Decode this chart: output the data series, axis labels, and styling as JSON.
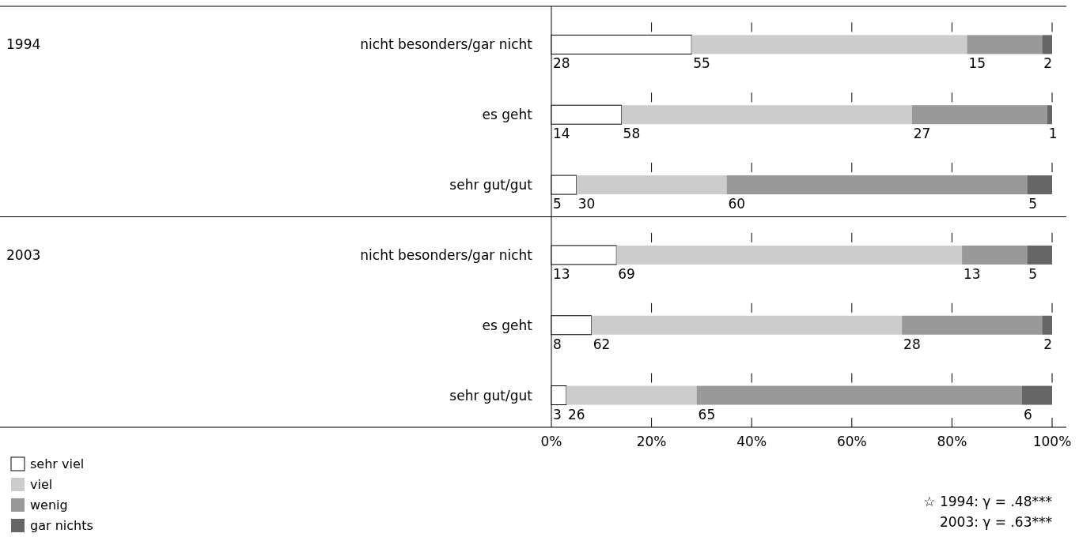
{
  "chart_data": [
    {
      "type": "bar",
      "orientation": "horizontal",
      "stacked": true,
      "ylabel": "1994",
      "categories": [
        "nicht besonders/gar nicht",
        "es geht",
        "sehr gut/gut"
      ],
      "series": [
        {
          "color": "#ffffff",
          "values": [
            28,
            14,
            5
          ]
        },
        {
          "color": "#cccccc",
          "values": [
            55,
            58,
            30
          ]
        },
        {
          "color": "#999999",
          "values": [
            15,
            27,
            60
          ]
        },
        {
          "color": "#666666",
          "values": [
            2,
            1,
            5
          ]
        }
      ],
      "xlim": [
        0,
        100
      ],
      "xticks": [
        {
          "value": 0,
          "label": null
        },
        {
          "value": 20,
          "label": null
        },
        {
          "value": 40,
          "label": null
        },
        {
          "value": 60,
          "label": null
        },
        {
          "value": 80,
          "label": null
        },
        {
          "value": 100,
          "label": null
        }
      ],
      "tick_labels": "y",
      "data_labels": true
    },
    {
      "type": "bar",
      "orientation": "horizontal",
      "stacked": true,
      "ylabel": "2003",
      "categories": [
        "nicht besonders/gar nicht",
        "es geht",
        "sehr gut/gut"
      ],
      "series": [
        {
          "name": "sehr viel",
          "color": "#ffffff",
          "values": [
            13,
            8,
            3
          ]
        },
        {
          "name": "viel",
          "color": "#cccccc",
          "values": [
            69,
            62,
            26
          ]
        },
        {
          "name": "wenig",
          "color": "#999999",
          "values": [
            13,
            28,
            65
          ]
        },
        {
          "name": "gar nichts",
          "color": "#666666",
          "values": [
            5,
            2,
            6
          ]
        }
      ],
      "xlim": [
        0,
        100
      ],
      "xticks": [
        {
          "value": 0,
          "label": "0%"
        },
        {
          "value": 20,
          "label": "20%"
        },
        {
          "value": 40,
          "label": "40%"
        },
        {
          "value": 60,
          "label": "60%"
        },
        {
          "value": 80,
          "label": "80%"
        },
        {
          "value": 100,
          "label": "100%"
        }
      ],
      "data_labels": true,
      "legend": "bottom left",
      "annotations": [
        "☆ 1994: γ = .48***",
        "2003: γ = .63***"
      ]
    }
  ]
}
